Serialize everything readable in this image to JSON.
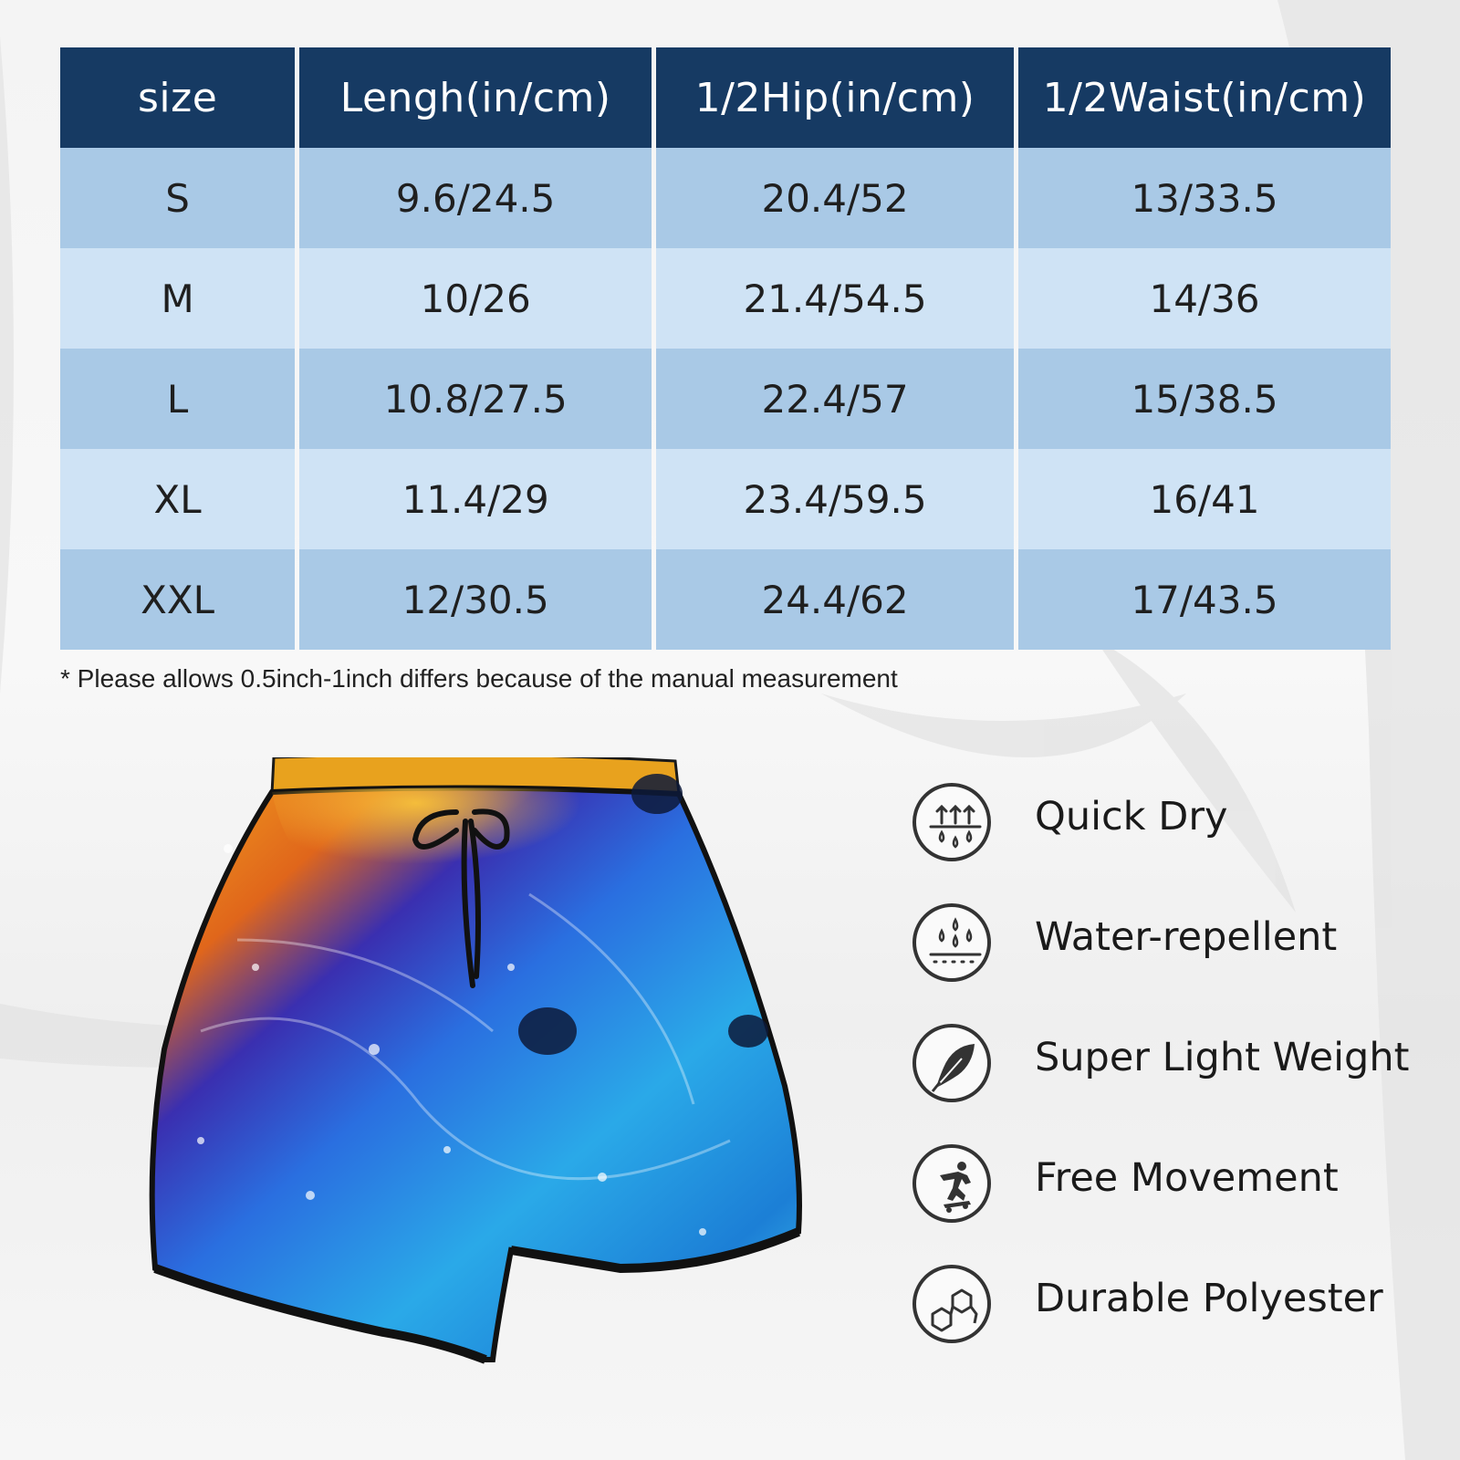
{
  "size_chart": {
    "headers": [
      "size",
      "Lengh(in/cm)",
      "1/2Hip(in/cm)",
      "1/2Waist(in/cm)"
    ],
    "rows": [
      [
        "S",
        "9.6/24.5",
        "20.4/52",
        "13/33.5"
      ],
      [
        "M",
        "10/26",
        "21.4/54.5",
        "14/36"
      ],
      [
        "L",
        "10.8/27.5",
        "22.4/57",
        "15/38.5"
      ],
      [
        "XL",
        "11.4/29",
        "23.4/59.5",
        "16/41"
      ],
      [
        "XXL",
        "12/30.5",
        "24.4/62",
        "17/43.5"
      ]
    ],
    "note": "* Please allows 0.5inch-1inch differs because of the manual measurement"
  },
  "features": [
    {
      "label": "Quick Dry",
      "icon": "quick-dry-icon"
    },
    {
      "label": "Water-repellent",
      "icon": "water-repellent-icon"
    },
    {
      "label": "Super Light Weight",
      "icon": "feather-icon"
    },
    {
      "label": "Free Movement",
      "icon": "skateboarder-icon"
    },
    {
      "label": "Durable Polyester",
      "icon": "molecule-icon"
    }
  ],
  "colors": {
    "header_bg": "#163a63",
    "row_dark": "#a9c9e6",
    "row_light": "#cfe3f5"
  }
}
